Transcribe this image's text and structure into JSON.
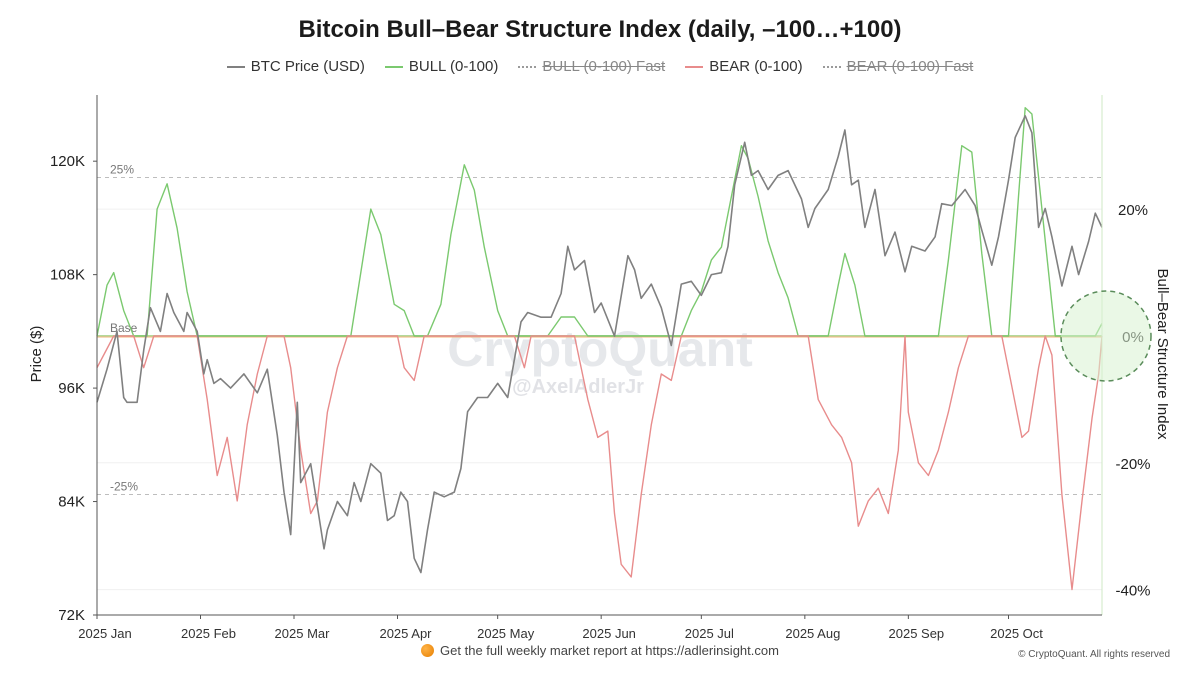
{
  "chart_data": {
    "type": "line",
    "title": "Bitcoin Bull–Bear Structure Index (daily, –100…+100)",
    "legend": [
      {
        "name": "BTC Price (USD)",
        "color": "#808080",
        "style": "solid"
      },
      {
        "name": "BULL (0-100)",
        "color": "#7bc96f",
        "style": "solid"
      },
      {
        "name": "BULL (0-100) Fast",
        "color": "#9a9a9a",
        "style": "dotted",
        "hidden": true
      },
      {
        "name": "BEAR (0-100)",
        "color": "#e88c8c",
        "style": "solid"
      },
      {
        "name": "BEAR (0-100) Fast",
        "color": "#9a9a9a",
        "style": "dotted",
        "hidden": true
      }
    ],
    "legend_position": "top-center",
    "ylabel_left": "Price ($)",
    "ylabel_right": "Bull–Bear Structure Index",
    "x_ticks": [
      "2025 Jan",
      "2025 Feb",
      "2025 Mar",
      "2025 Apr",
      "2025 May",
      "2025 Jun",
      "2025 Jul",
      "2025 Aug",
      "2025 Sep",
      "2025 Oct"
    ],
    "x_range": [
      "2025-01-01",
      "2025-10-29"
    ],
    "y_left_ticks": [
      "72K",
      "84K",
      "96K",
      "108K",
      "120K"
    ],
    "y_left_range": [
      72000,
      127000
    ],
    "y_right_ticks": [
      "20%",
      "0%",
      "-20%",
      "-40%"
    ],
    "y_right_range": [
      -44,
      38
    ],
    "reference_lines": [
      {
        "label": "25%",
        "value": 25
      },
      {
        "label": "Base",
        "value": 0
      },
      {
        "label": "-25%",
        "value": -25
      }
    ],
    "grid": "horizontal",
    "watermark": "CryptoQuant",
    "watermark_sub": "@AxelAdlerJr",
    "price_series": {
      "name": "BTC Price (USD)",
      "color": "#808080",
      "points": [
        [
          "2025-01-01",
          94500
        ],
        [
          "2025-01-04",
          98000
        ],
        [
          "2025-01-07",
          102000
        ],
        [
          "2025-01-09",
          95000
        ],
        [
          "2025-01-10",
          94500
        ],
        [
          "2025-01-13",
          94500
        ],
        [
          "2025-01-15",
          100000
        ],
        [
          "2025-01-17",
          104500
        ],
        [
          "2025-01-20",
          102000
        ],
        [
          "2025-01-22",
          106000
        ],
        [
          "2025-01-24",
          104000
        ],
        [
          "2025-01-27",
          102000
        ],
        [
          "2025-01-28",
          104000
        ],
        [
          "2025-01-31",
          102000
        ],
        [
          "2025-02-02",
          97500
        ],
        [
          "2025-02-03",
          99000
        ],
        [
          "2025-02-05",
          96500
        ],
        [
          "2025-02-07",
          97000
        ],
        [
          "2025-02-10",
          96000
        ],
        [
          "2025-02-14",
          97500
        ],
        [
          "2025-02-18",
          95500
        ],
        [
          "2025-02-21",
          98000
        ],
        [
          "2025-02-24",
          91000
        ],
        [
          "2025-02-26",
          85000
        ],
        [
          "2025-02-28",
          80500
        ],
        [
          "2025-03-02",
          94500
        ],
        [
          "2025-03-03",
          86000
        ],
        [
          "2025-03-06",
          88000
        ],
        [
          "2025-03-10",
          79000
        ],
        [
          "2025-03-11",
          81000
        ],
        [
          "2025-03-14",
          84000
        ],
        [
          "2025-03-17",
          82500
        ],
        [
          "2025-03-19",
          86000
        ],
        [
          "2025-03-21",
          84000
        ],
        [
          "2025-03-24",
          88000
        ],
        [
          "2025-03-27",
          87000
        ],
        [
          "2025-03-29",
          82000
        ],
        [
          "2025-03-31",
          82500
        ],
        [
          "2025-04-02",
          85000
        ],
        [
          "2025-04-04",
          84000
        ],
        [
          "2025-04-06",
          78000
        ],
        [
          "2025-04-08",
          76500
        ],
        [
          "2025-04-10",
          81000
        ],
        [
          "2025-04-12",
          85000
        ],
        [
          "2025-04-15",
          84500
        ],
        [
          "2025-04-18",
          85000
        ],
        [
          "2025-04-20",
          87500
        ],
        [
          "2025-04-22",
          93500
        ],
        [
          "2025-04-25",
          95000
        ],
        [
          "2025-04-28",
          95000
        ],
        [
          "2025-05-01",
          96500
        ],
        [
          "2025-05-04",
          95000
        ],
        [
          "2025-05-08",
          103000
        ],
        [
          "2025-05-10",
          104000
        ],
        [
          "2025-05-14",
          103500
        ],
        [
          "2025-05-17",
          103500
        ],
        [
          "2025-05-20",
          106000
        ],
        [
          "2025-05-22",
          111000
        ],
        [
          "2025-05-24",
          108500
        ],
        [
          "2025-05-27",
          109500
        ],
        [
          "2025-05-30",
          104000
        ],
        [
          "2025-06-01",
          105000
        ],
        [
          "2025-06-05",
          101500
        ],
        [
          "2025-06-09",
          110000
        ],
        [
          "2025-06-11",
          108500
        ],
        [
          "2025-06-13",
          105500
        ],
        [
          "2025-06-16",
          107000
        ],
        [
          "2025-06-19",
          104500
        ],
        [
          "2025-06-22",
          100500
        ],
        [
          "2025-06-25",
          107000
        ],
        [
          "2025-06-28",
          107300
        ],
        [
          "2025-07-01",
          105800
        ],
        [
          "2025-07-04",
          108000
        ],
        [
          "2025-07-07",
          108200
        ],
        [
          "2025-07-09",
          111000
        ],
        [
          "2025-07-11",
          117500
        ],
        [
          "2025-07-14",
          122000
        ],
        [
          "2025-07-16",
          118500
        ],
        [
          "2025-07-18",
          119000
        ],
        [
          "2025-07-21",
          117000
        ],
        [
          "2025-07-24",
          118500
        ],
        [
          "2025-07-27",
          119000
        ],
        [
          "2025-07-31",
          116000
        ],
        [
          "2025-08-02",
          113000
        ],
        [
          "2025-08-04",
          115000
        ],
        [
          "2025-08-08",
          117000
        ],
        [
          "2025-08-11",
          120500
        ],
        [
          "2025-08-13",
          123300
        ],
        [
          "2025-08-15",
          117500
        ],
        [
          "2025-08-17",
          118000
        ],
        [
          "2025-08-19",
          113000
        ],
        [
          "2025-08-22",
          117000
        ],
        [
          "2025-08-25",
          110000
        ],
        [
          "2025-08-28",
          112500
        ],
        [
          "2025-08-31",
          108300
        ],
        [
          "2025-09-02",
          111000
        ],
        [
          "2025-09-06",
          110500
        ],
        [
          "2025-09-09",
          112000
        ],
        [
          "2025-09-11",
          115500
        ],
        [
          "2025-09-14",
          115300
        ],
        [
          "2025-09-18",
          117000
        ],
        [
          "2025-09-21",
          115300
        ],
        [
          "2025-09-23",
          112700
        ],
        [
          "2025-09-26",
          109000
        ],
        [
          "2025-09-28",
          112000
        ],
        [
          "2025-10-01",
          118000
        ],
        [
          "2025-10-03",
          122500
        ],
        [
          "2025-10-06",
          124800
        ],
        [
          "2025-10-08",
          123000
        ],
        [
          "2025-10-10",
          113000
        ],
        [
          "2025-10-12",
          115000
        ],
        [
          "2025-10-14",
          112000
        ],
        [
          "2025-10-17",
          106800
        ],
        [
          "2025-10-20",
          111000
        ],
        [
          "2025-10-22",
          108000
        ],
        [
          "2025-10-25",
          111500
        ],
        [
          "2025-10-27",
          114500
        ],
        [
          "2025-10-29",
          113000
        ]
      ]
    },
    "bull_series": {
      "name": "BULL (0-100)",
      "color": "#7bc96f",
      "points": [
        [
          "2025-01-01",
          0
        ],
        [
          "2025-01-04",
          8
        ],
        [
          "2025-01-06",
          10
        ],
        [
          "2025-01-09",
          4
        ],
        [
          "2025-01-12",
          0
        ],
        [
          "2025-01-16",
          0
        ],
        [
          "2025-01-19",
          20
        ],
        [
          "2025-01-22",
          24
        ],
        [
          "2025-01-25",
          17
        ],
        [
          "2025-01-28",
          7
        ],
        [
          "2025-01-31",
          0
        ],
        [
          "2025-02-05",
          0
        ],
        [
          "2025-02-25",
          0
        ],
        [
          "2025-03-14",
          0
        ],
        [
          "2025-03-18",
          0
        ],
        [
          "2025-03-21",
          10
        ],
        [
          "2025-03-24",
          20
        ],
        [
          "2025-03-27",
          16
        ],
        [
          "2025-03-31",
          5
        ],
        [
          "2025-04-03",
          4
        ],
        [
          "2025-04-06",
          0
        ],
        [
          "2025-04-10",
          0
        ],
        [
          "2025-04-14",
          5
        ],
        [
          "2025-04-17",
          16
        ],
        [
          "2025-04-21",
          27
        ],
        [
          "2025-04-24",
          23
        ],
        [
          "2025-04-27",
          14
        ],
        [
          "2025-05-01",
          4
        ],
        [
          "2025-05-04",
          0
        ],
        [
          "2025-05-16",
          0
        ],
        [
          "2025-05-20",
          3
        ],
        [
          "2025-05-24",
          3
        ],
        [
          "2025-05-28",
          0
        ],
        [
          "2025-06-25",
          0
        ],
        [
          "2025-06-28",
          4
        ],
        [
          "2025-07-01",
          7
        ],
        [
          "2025-07-04",
          12
        ],
        [
          "2025-07-07",
          14
        ],
        [
          "2025-07-10",
          22
        ],
        [
          "2025-07-13",
          30
        ],
        [
          "2025-07-15",
          28
        ],
        [
          "2025-07-18",
          22
        ],
        [
          "2025-07-21",
          15
        ],
        [
          "2025-07-24",
          10
        ],
        [
          "2025-07-27",
          6
        ],
        [
          "2025-07-30",
          0
        ],
        [
          "2025-08-08",
          0
        ],
        [
          "2025-08-11",
          8
        ],
        [
          "2025-08-13",
          13
        ],
        [
          "2025-08-16",
          8
        ],
        [
          "2025-08-19",
          0
        ],
        [
          "2025-09-10",
          0
        ],
        [
          "2025-09-13",
          12
        ],
        [
          "2025-09-17",
          30
        ],
        [
          "2025-09-20",
          29
        ],
        [
          "2025-09-23",
          13
        ],
        [
          "2025-09-26",
          0
        ],
        [
          "2025-10-01",
          0
        ],
        [
          "2025-10-04",
          22
        ],
        [
          "2025-10-06",
          36
        ],
        [
          "2025-10-08",
          35
        ],
        [
          "2025-10-10",
          25
        ],
        [
          "2025-10-13",
          10
        ],
        [
          "2025-10-15",
          0
        ],
        [
          "2025-10-27",
          0
        ],
        [
          "2025-10-29",
          2
        ]
      ]
    },
    "bear_series": {
      "name": "BEAR (0-100)",
      "color": "#e88c8c",
      "points": [
        [
          "2025-01-01",
          -5
        ],
        [
          "2025-01-03",
          -3
        ],
        [
          "2025-01-06",
          0
        ],
        [
          "2025-01-12",
          0
        ],
        [
          "2025-01-15",
          -5
        ],
        [
          "2025-01-18",
          0
        ],
        [
          "2025-01-31",
          0
        ],
        [
          "2025-02-03",
          -10
        ],
        [
          "2025-02-06",
          -22
        ],
        [
          "2025-02-09",
          -16
        ],
        [
          "2025-02-12",
          -26
        ],
        [
          "2025-02-15",
          -14
        ],
        [
          "2025-02-18",
          -6
        ],
        [
          "2025-02-21",
          0
        ],
        [
          "2025-02-26",
          0
        ],
        [
          "2025-02-28",
          -5
        ],
        [
          "2025-03-03",
          -18
        ],
        [
          "2025-03-06",
          -28
        ],
        [
          "2025-03-08",
          -26
        ],
        [
          "2025-03-11",
          -12
        ],
        [
          "2025-03-14",
          -5
        ],
        [
          "2025-03-17",
          0
        ],
        [
          "2025-04-01",
          0
        ],
        [
          "2025-04-03",
          -5
        ],
        [
          "2025-04-06",
          -7
        ],
        [
          "2025-04-09",
          0
        ],
        [
          "2025-05-06",
          0
        ],
        [
          "2025-05-09",
          -5
        ],
        [
          "2025-05-11",
          0
        ],
        [
          "2025-05-24",
          0
        ],
        [
          "2025-05-28",
          -10
        ],
        [
          "2025-05-31",
          -16
        ],
        [
          "2025-06-03",
          -15
        ],
        [
          "2025-06-05",
          -28
        ],
        [
          "2025-06-07",
          -36
        ],
        [
          "2025-06-10",
          -38
        ],
        [
          "2025-06-13",
          -25
        ],
        [
          "2025-06-16",
          -14
        ],
        [
          "2025-06-19",
          -6
        ],
        [
          "2025-06-22",
          -7
        ],
        [
          "2025-06-25",
          0
        ],
        [
          "2025-08-02",
          0
        ],
        [
          "2025-08-05",
          -10
        ],
        [
          "2025-08-09",
          -14
        ],
        [
          "2025-08-12",
          -16
        ],
        [
          "2025-08-15",
          -20
        ],
        [
          "2025-08-17",
          -30
        ],
        [
          "2025-08-20",
          -26
        ],
        [
          "2025-08-23",
          -24
        ],
        [
          "2025-08-26",
          -28
        ],
        [
          "2025-08-29",
          -18
        ],
        [
          "2025-08-31",
          0
        ],
        [
          "2025-09-01",
          -12
        ],
        [
          "2025-09-04",
          -20
        ],
        [
          "2025-09-07",
          -22
        ],
        [
          "2025-09-10",
          -18
        ],
        [
          "2025-09-13",
          -12
        ],
        [
          "2025-09-16",
          -5
        ],
        [
          "2025-09-19",
          0
        ],
        [
          "2025-09-29",
          0
        ],
        [
          "2025-10-02",
          -8
        ],
        [
          "2025-10-05",
          -16
        ],
        [
          "2025-10-07",
          -15
        ],
        [
          "2025-10-10",
          -5
        ],
        [
          "2025-10-12",
          0
        ],
        [
          "2025-10-14",
          -3
        ],
        [
          "2025-10-17",
          -25
        ],
        [
          "2025-10-20",
          -40
        ],
        [
          "2025-10-23",
          -26
        ],
        [
          "2025-10-26",
          -13
        ],
        [
          "2025-10-28",
          -6
        ],
        [
          "2025-10-29",
          0
        ]
      ]
    }
  },
  "footer": {
    "text": "Get the full weekly market report at",
    "link": "https://adlerinsight.com",
    "copyright": "© CryptoQuant. All rights reserved"
  },
  "colors": {
    "price": "#808080",
    "bull": "#7bc96f",
    "bear": "#e88c8c",
    "base_line": "#f0b47a",
    "highlight_circle": "#5a8c5a"
  }
}
